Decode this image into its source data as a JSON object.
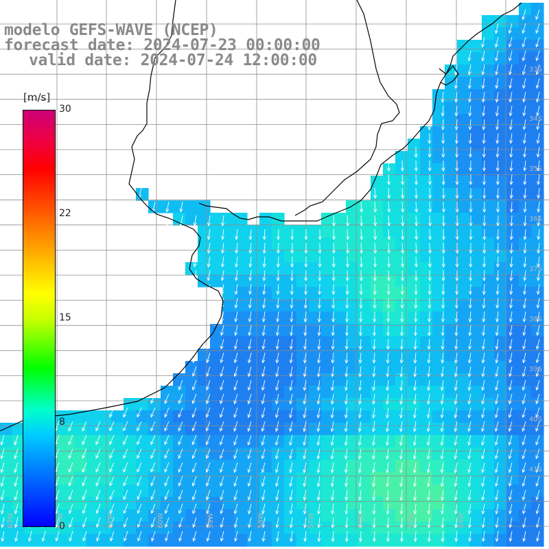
{
  "title": {
    "line1": "modelo GEFS-WAVE (NCEP)",
    "line2": "forecast date: 2024-07-23 00:00:00",
    "line3": "valid date: 2024-07-24 12:00:00"
  },
  "colorbar": {
    "unit": "[m/s]",
    "ticks": [
      "30",
      "22",
      "15",
      "8",
      "0"
    ],
    "min": 0,
    "max": 30,
    "colors": [
      "#0000ff",
      "#00ccff",
      "#00ff00",
      "#ffff00",
      "#ff0000",
      "#cc0077"
    ]
  },
  "grid": {
    "lat_labels": [
      "33S",
      "34S",
      "35S",
      "36S",
      "37S",
      "38S",
      "39S",
      "40S",
      "41S"
    ],
    "lon_labels": [
      "63W",
      "62W",
      "61W",
      "60W",
      "59W",
      "58W",
      "57W",
      "56W",
      "55W",
      "54W"
    ]
  },
  "colors": {
    "land": "#ffffff",
    "coast": "#000000",
    "gridline": "#8c8c8c",
    "vector": "#ffffff"
  }
}
